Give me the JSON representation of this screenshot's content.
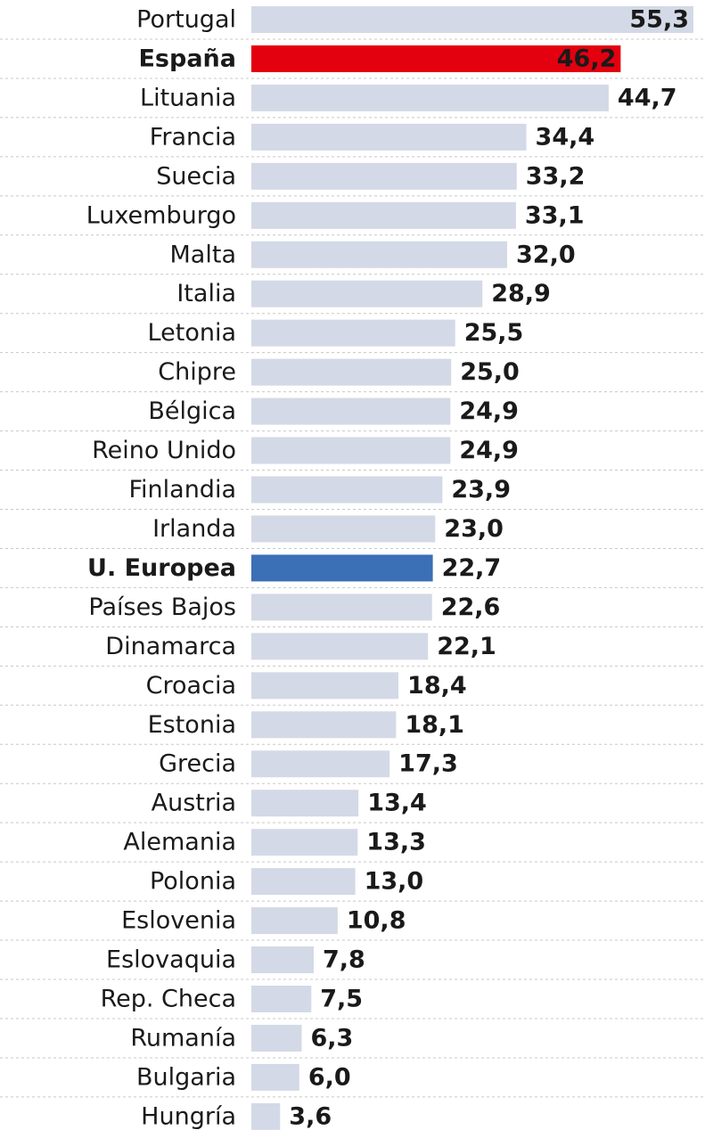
{
  "chart_data": {
    "type": "bar",
    "orientation": "horizontal",
    "categories": [
      "Portugal",
      "España",
      "Lituania",
      "Francia",
      "Suecia",
      "Luxemburgo",
      "Malta",
      "Italia",
      "Letonia",
      "Chipre",
      "Bélgica",
      "Reino Unido",
      "Finlandia",
      "Irlanda",
      "U. Europea",
      "Países Bajos",
      "Dinamarca",
      "Croacia",
      "Estonia",
      "Grecia",
      "Austria",
      "Alemania",
      "Polonia",
      "Eslovenia",
      "Eslovaquia",
      "Rep. Checa",
      "Rumanía",
      "Bulgaria",
      "Hungría"
    ],
    "values": [
      55.3,
      46.2,
      44.7,
      34.4,
      33.2,
      33.1,
      32.0,
      28.9,
      25.5,
      25.0,
      24.9,
      24.9,
      23.9,
      23.0,
      22.7,
      22.6,
      22.1,
      18.4,
      18.1,
      17.3,
      13.4,
      13.3,
      13.0,
      10.8,
      7.8,
      7.5,
      6.3,
      6.0,
      3.6
    ],
    "value_labels": [
      "55,3",
      "46,2",
      "44,7",
      "34,4",
      "33,2",
      "33,1",
      "32,0",
      "28,9",
      "25,5",
      "25,0",
      "24,9",
      "24,9",
      "23,9",
      "23,0",
      "22,7",
      "22,6",
      "22,1",
      "18,4",
      "18,1",
      "17,3",
      "13,4",
      "13,3",
      "13,0",
      "10,8",
      "7,8",
      "7,5",
      "6,3",
      "6,0",
      "3,6"
    ],
    "color": "#d3d9e6",
    "colors": [
      "#d3d9e6",
      "#e3000f",
      "#d3d9e6",
      "#d3d9e6",
      "#d3d9e6",
      "#d3d9e6",
      "#d3d9e6",
      "#d3d9e6",
      "#d3d9e6",
      "#d3d9e6",
      "#d3d9e6",
      "#d3d9e6",
      "#d3d9e6",
      "#d3d9e6",
      "#3b6fb6",
      "#d3d9e6",
      "#d3d9e6",
      "#d3d9e6",
      "#d3d9e6",
      "#d3d9e6",
      "#d3d9e6",
      "#d3d9e6",
      "#d3d9e6",
      "#d3d9e6",
      "#d3d9e6",
      "#d3d9e6",
      "#d3d9e6",
      "#d3d9e6",
      "#d3d9e6"
    ],
    "xlim": [
      0,
      55.3
    ]
  }
}
